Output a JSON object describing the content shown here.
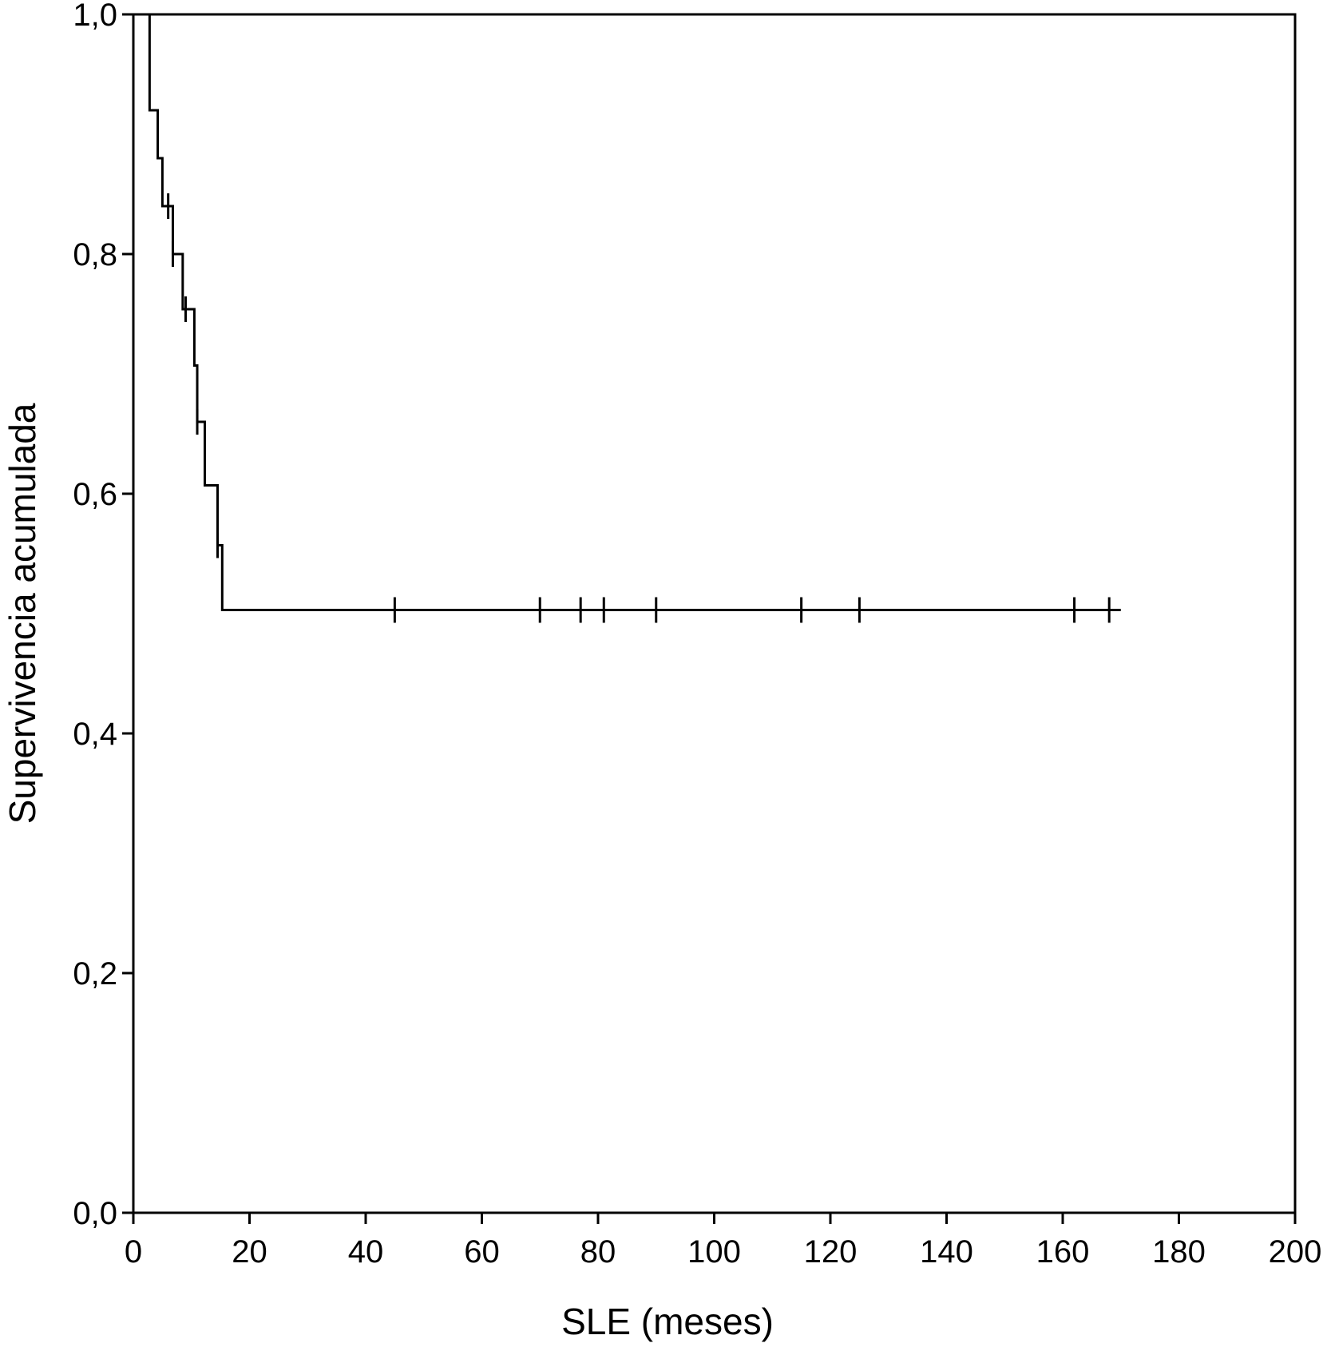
{
  "chart_data": {
    "type": "line",
    "subtype": "kaplan-meier-step",
    "title": "",
    "xlabel": "SLE (meses)",
    "ylabel": "Supervivencia acumulada",
    "xlim": [
      0,
      200
    ],
    "ylim": [
      0,
      1.0
    ],
    "x_ticks": [
      0,
      20,
      40,
      60,
      80,
      100,
      120,
      140,
      160,
      180,
      200
    ],
    "x_tick_labels": [
      "0",
      "20",
      "40",
      "60",
      "80",
      "100",
      "120",
      "140",
      "160",
      "180",
      "200"
    ],
    "y_ticks": [
      0,
      0.2,
      0.4,
      0.6,
      0.8,
      1.0
    ],
    "y_tick_labels": [
      "0,0",
      "0,2",
      "0,4",
      "0,6",
      "0,8",
      "1,0"
    ],
    "grid": false,
    "legend": "none",
    "line_color": "#000000",
    "series": [
      {
        "steps": [
          {
            "x": 0,
            "y": 1.0
          },
          {
            "x": 2.8,
            "y": 0.92
          },
          {
            "x": 4.2,
            "y": 0.88
          },
          {
            "x": 5.0,
            "y": 0.84
          },
          {
            "x": 6.8,
            "y": 0.8
          },
          {
            "x": 8.5,
            "y": 0.754
          },
          {
            "x": 10.5,
            "y": 0.707
          },
          {
            "x": 11.0,
            "y": 0.66
          },
          {
            "x": 12.3,
            "y": 0.607
          },
          {
            "x": 14.5,
            "y": 0.557
          },
          {
            "x": 15.3,
            "y": 0.503
          }
        ],
        "end_x": 170,
        "censored": [
          {
            "x": 6.0,
            "y": 0.84
          },
          {
            "x": 6.8,
            "y": 0.8
          },
          {
            "x": 9.0,
            "y": 0.754
          },
          {
            "x": 11.0,
            "y": 0.66
          },
          {
            "x": 14.5,
            "y": 0.557
          },
          {
            "x": 45,
            "y": 0.503
          },
          {
            "x": 70,
            "y": 0.503
          },
          {
            "x": 77,
            "y": 0.503
          },
          {
            "x": 81,
            "y": 0.503
          },
          {
            "x": 90,
            "y": 0.503
          },
          {
            "x": 115,
            "y": 0.503
          },
          {
            "x": 125,
            "y": 0.503
          },
          {
            "x": 162,
            "y": 0.503
          },
          {
            "x": 168,
            "y": 0.503
          }
        ]
      }
    ]
  }
}
